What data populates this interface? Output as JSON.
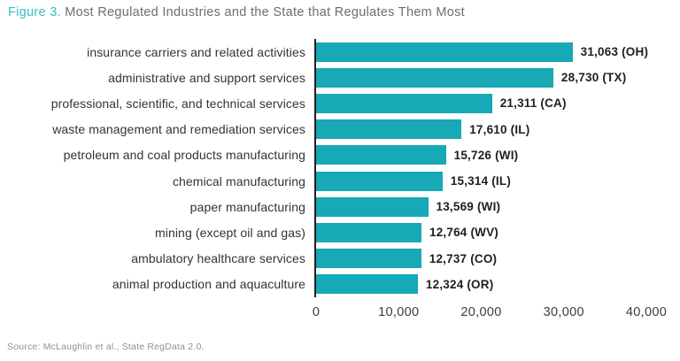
{
  "title": {
    "figure_label": "Figure 3.",
    "text": " Most Regulated Industries and the State that Regulates Them Most"
  },
  "source": "Source: McLaughlin et al., State RegData 2.0.",
  "colors": {
    "bar": "#17A9B5",
    "figure_label": "#3ABDC4",
    "title_text": "#6D6E71",
    "axis_line": "#1e1e1f",
    "value_text": "#1F1F21",
    "category_text": "#333335",
    "tick_text": "#3C3C3E",
    "source_text": "#8E9093"
  },
  "chart_data": {
    "type": "bar",
    "orientation": "horizontal",
    "title": "Figure 3. Most Regulated Industries and the State that Regulates Them Most",
    "categories": [
      "insurance carriers and related activities",
      "administrative and support services",
      "professional, scientific, and technical services",
      "waste management and remediation services",
      "petroleum and coal products manufacturing",
      "chemical manufacturing",
      "paper manufacturing",
      "mining (except oil and gas)",
      "ambulatory healthcare services",
      "animal production and aquaculture"
    ],
    "values": [
      31063,
      28730,
      21311,
      17610,
      15726,
      15314,
      13569,
      12764,
      12737,
      12324
    ],
    "value_labels": [
      "31,063 (OH)",
      "28,730 (TX)",
      "21,311 (CA)",
      "17,610 (IL)",
      "15,726 (WI)",
      "15,314 (IL)",
      "13,569 (WI)",
      "12,764 (WV)",
      "12,737 (CO)",
      "12,324 (OR)"
    ],
    "states": [
      "OH",
      "TX",
      "CA",
      "IL",
      "WI",
      "IL",
      "WI",
      "WV",
      "CO",
      "OR"
    ],
    "xlim": [
      0,
      40000
    ],
    "x_tick_values": [
      0,
      10000,
      20000,
      30000,
      40000
    ],
    "x_tick_labels": [
      "0",
      "10,000",
      "20,000",
      "30,000",
      "40,000"
    ],
    "xlabel": "",
    "ylabel": "",
    "grid": false,
    "legend": false
  }
}
